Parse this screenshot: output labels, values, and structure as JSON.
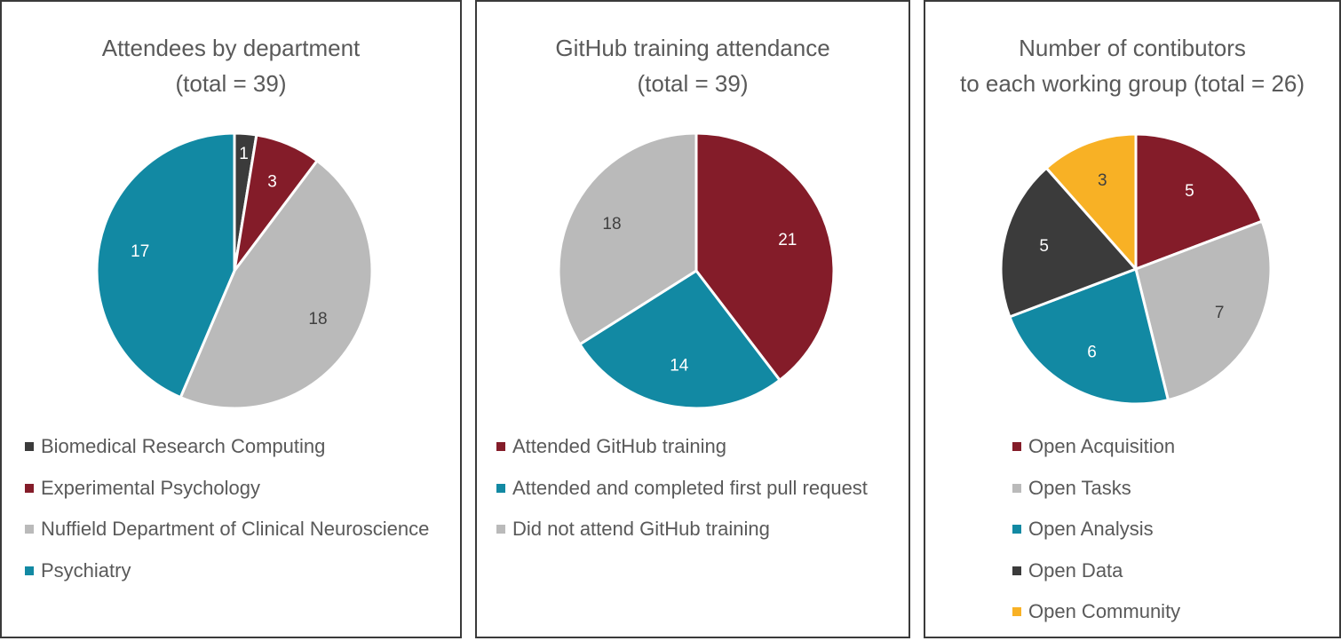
{
  "chart_data": [
    {
      "type": "pie",
      "title": "Attendees by department",
      "subtitle": "(total = 39)",
      "categories": [
        "Biomedical Research Computing",
        "Experimental Psychology",
        "Nuffield Department of Clinical Neuroscience",
        "Psychiatry"
      ],
      "values": [
        1,
        3,
        18,
        17
      ],
      "colors": [
        "#3b3b3b",
        "#841c29",
        "#bababa",
        "#1289a3"
      ],
      "label_colors": [
        "#ffffff",
        "#ffffff",
        "#404040",
        "#ffffff"
      ],
      "legend_position": "bottom"
    },
    {
      "type": "pie",
      "title": "GitHub training attendance",
      "subtitle": "(total = 39)",
      "categories": [
        "Attended GitHub training",
        "Attended and completed first pull request",
        "Did not attend GitHub training"
      ],
      "values": [
        21,
        14,
        18
      ],
      "colors": [
        "#841c29",
        "#1289a3",
        "#bababa"
      ],
      "label_colors": [
        "#ffffff",
        "#ffffff",
        "#404040"
      ],
      "legend_position": "bottom"
    },
    {
      "type": "pie",
      "title": "Number of contibutors",
      "subtitle": "to each working group (total = 26)",
      "categories": [
        "Open Acquisition",
        "Open Tasks",
        "Open Analysis",
        "Open Data",
        "Open Community"
      ],
      "values": [
        5,
        7,
        6,
        5,
        3
      ],
      "colors": [
        "#841c29",
        "#bababa",
        "#1289a3",
        "#3b3b3b",
        "#f8b125"
      ],
      "label_colors": [
        "#ffffff",
        "#404040",
        "#ffffff",
        "#ffffff",
        "#404040"
      ],
      "legend_position": "bottom"
    }
  ]
}
